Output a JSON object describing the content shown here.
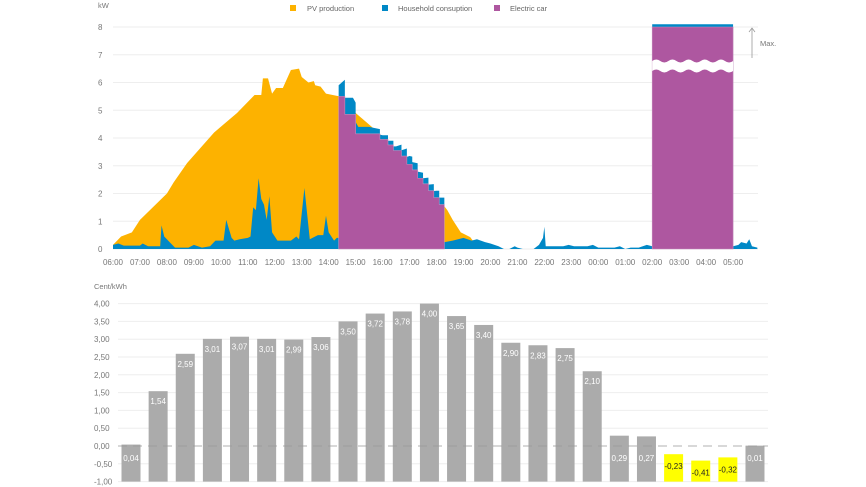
{
  "colors": {
    "pv": "#FDB200",
    "household": "#0088C6",
    "ev": "#AE57A0",
    "bar": "#ABABAB",
    "bar_negative": "#FFFF00",
    "grid": "#EEEEEE"
  },
  "chart_data": [
    {
      "type": "area",
      "ylabel": "kW",
      "ylim": [
        0,
        8
      ],
      "yticks": [
        "0",
        "1",
        "2",
        "3",
        "4",
        "5",
        "6",
        "7",
        "8"
      ],
      "xticks": [
        "06:00",
        "07:00",
        "08:00",
        "09:00",
        "10:00",
        "11:00",
        "12:00",
        "13:00",
        "14:00",
        "15:00",
        "16:00",
        "17:00",
        "18:00",
        "19:00",
        "20:00",
        "21:00",
        "22:00",
        "23:00",
        "00:00",
        "01:00",
        "02:00",
        "03:00",
        "04:00",
        "05:00"
      ],
      "grid": true,
      "legend_position": "top-center",
      "max_annotation": "Max.",
      "series": [
        {
          "name": "PV production",
          "points": [
            [
              6.0,
              0.15
            ],
            [
              6.3,
              0.45
            ],
            [
              6.7,
              0.6
            ],
            [
              7.0,
              1.05
            ],
            [
              8.0,
              2.0
            ],
            [
              8.25,
              2.4
            ],
            [
              8.75,
              3.1
            ],
            [
              9.75,
              4.2
            ],
            [
              10.6,
              4.9
            ],
            [
              11.25,
              5.55
            ],
            [
              11.5,
              5.55
            ],
            [
              11.56,
              6.15
            ],
            [
              11.75,
              6.15
            ],
            [
              11.9,
              5.6
            ],
            [
              12.05,
              5.8
            ],
            [
              12.3,
              5.8
            ],
            [
              12.6,
              6.45
            ],
            [
              12.9,
              6.5
            ],
            [
              13.0,
              6.2
            ],
            [
              13.25,
              6.0
            ],
            [
              13.45,
              6.05
            ],
            [
              13.5,
              5.9
            ],
            [
              13.7,
              5.85
            ],
            [
              13.9,
              5.6
            ],
            [
              14.4,
              5.5
            ],
            [
              14.5,
              5.6
            ],
            [
              15.0,
              4.9
            ],
            [
              15.6,
              4.4
            ],
            [
              16.0,
              4.05
            ],
            [
              16.5,
              3.5
            ],
            [
              17.0,
              3.1
            ],
            [
              17.6,
              2.4
            ],
            [
              18.0,
              1.9
            ],
            [
              18.4,
              1.4
            ],
            [
              18.6,
              1.05
            ],
            [
              18.9,
              0.6
            ],
            [
              19.25,
              0.43
            ],
            [
              19.5,
              0.1
            ],
            [
              19.7,
              0
            ]
          ]
        },
        {
          "name": "Household consuption",
          "points": [
            [
              6.0,
              0.15
            ],
            [
              6.2,
              0.2
            ],
            [
              6.4,
              0.12
            ],
            [
              7.0,
              0.12
            ],
            [
              7.1,
              0.2
            ],
            [
              7.3,
              0.1
            ],
            [
              7.75,
              0.1
            ],
            [
              7.8,
              0.85
            ],
            [
              7.9,
              0.45
            ],
            [
              8.1,
              0.25
            ],
            [
              8.3,
              0.05
            ],
            [
              8.8,
              0.05
            ],
            [
              9.0,
              0.15
            ],
            [
              9.3,
              0.05
            ],
            [
              9.6,
              0.1
            ],
            [
              9.8,
              0.3
            ],
            [
              10.1,
              0.3
            ],
            [
              10.2,
              1.05
            ],
            [
              10.4,
              0.4
            ],
            [
              10.5,
              0.3
            ],
            [
              10.7,
              0.35
            ],
            [
              11.0,
              0.4
            ],
            [
              11.1,
              0.45
            ],
            [
              11.2,
              1.5
            ],
            [
              11.3,
              1.4
            ],
            [
              11.4,
              2.55
            ],
            [
              11.5,
              1.8
            ],
            [
              11.6,
              1.6
            ],
            [
              11.7,
              1.05
            ],
            [
              11.8,
              1.9
            ],
            [
              11.9,
              0.6
            ],
            [
              12.1,
              0.3
            ],
            [
              12.6,
              0.3
            ],
            [
              12.8,
              0.45
            ],
            [
              12.9,
              0.35
            ],
            [
              13.1,
              2.2
            ],
            [
              13.3,
              0.35
            ],
            [
              13.6,
              0.5
            ],
            [
              13.8,
              0.5
            ],
            [
              13.9,
              1.2
            ],
            [
              14.0,
              0.6
            ],
            [
              14.2,
              0.3
            ],
            [
              14.3,
              0.4
            ],
            [
              14.37,
              0.4
            ],
            [
              14.6,
              0.6
            ],
            [
              14.9,
              0.6
            ],
            [
              15.1,
              0.25
            ],
            [
              15.5,
              0.25
            ],
            [
              16.0,
              0.15
            ],
            [
              16.5,
              0.15
            ],
            [
              17.0,
              0.3
            ],
            [
              17.5,
              0.2
            ],
            [
              18.0,
              0.25
            ],
            [
              18.3,
              0.25
            ],
            [
              18.6,
              0.3
            ],
            [
              19.0,
              0.4
            ],
            [
              19.3,
              0.3
            ],
            [
              19.5,
              0.35
            ],
            [
              19.8,
              0.25
            ],
            [
              20.0,
              0.2
            ],
            [
              20.3,
              0.1
            ],
            [
              20.5,
              0.0
            ],
            [
              20.7,
              0.0
            ],
            [
              20.9,
              0.1
            ],
            [
              21.0,
              0.05
            ],
            [
              21.2,
              0.0
            ],
            [
              21.6,
              0.0
            ],
            [
              21.8,
              0.15
            ],
            [
              21.95,
              0.4
            ],
            [
              22.0,
              0.8
            ],
            [
              22.05,
              0.1
            ],
            [
              22.7,
              0.1
            ],
            [
              22.9,
              0.15
            ],
            [
              23.1,
              0.1
            ],
            [
              23.6,
              0.1
            ],
            [
              23.8,
              0.15
            ],
            [
              24.0,
              0.05
            ],
            [
              24.6,
              0.05
            ],
            [
              24.8,
              0.1
            ],
            [
              25.0,
              0.0
            ],
            [
              25.2,
              0.05
            ],
            [
              25.5,
              0.05
            ],
            [
              25.8,
              0.15
            ],
            [
              26.0,
              0.1
            ],
            [
              29.0,
              0.1
            ],
            [
              29.2,
              0.15
            ],
            [
              29.3,
              0.25
            ],
            [
              29.5,
              0.2
            ],
            [
              29.6,
              0.35
            ],
            [
              29.7,
              0.1
            ],
            [
              29.9,
              0.05
            ]
          ]
        },
        {
          "name": "Electric car",
          "step": true,
          "points": [
            [
              14.37,
              5.5
            ],
            [
              14.6,
              4.85
            ],
            [
              15.0,
              4.15
            ],
            [
              15.9,
              3.95
            ],
            [
              16.2,
              3.75
            ],
            [
              16.4,
              3.55
            ],
            [
              16.7,
              3.35
            ],
            [
              16.9,
              3.05
            ],
            [
              17.1,
              2.85
            ],
            [
              17.3,
              2.55
            ],
            [
              17.5,
              2.35
            ],
            [
              17.7,
              2.1
            ],
            [
              17.9,
              1.85
            ],
            [
              18.1,
              1.6
            ],
            [
              18.29,
              0
            ],
            [
              26.0,
              8
            ],
            [
              29.0,
              0
            ]
          ]
        }
      ]
    },
    {
      "type": "bar",
      "ylabel": "Cent/kWh",
      "ylim": [
        -1,
        4
      ],
      "yticks": [
        "4,00",
        "3,50",
        "3,00",
        "2,50",
        "2,00",
        "1,50",
        "1,00",
        "0,50",
        "0,00",
        "-0,50",
        "-1,00"
      ],
      "grid": true,
      "values": [
        0.04,
        1.54,
        2.59,
        3.01,
        3.07,
        3.01,
        2.99,
        3.06,
        3.5,
        3.72,
        3.78,
        4.0,
        3.65,
        3.4,
        2.9,
        2.83,
        2.75,
        2.1,
        0.29,
        0.27,
        -0.23,
        -0.41,
        -0.32,
        0.01
      ],
      "labels": [
        "0,04",
        "1,54",
        "2,59",
        "3,01",
        "3,07",
        "3,01",
        "2,99",
        "3,06",
        "3,50",
        "3,72",
        "3,78",
        "4,00",
        "3,65",
        "3,40",
        "2,90",
        "2,83",
        "2,75",
        "2,10",
        "0,29",
        "0,27",
        "-0,23",
        "-0,41",
        "-0,32",
        "0,01"
      ]
    }
  ]
}
